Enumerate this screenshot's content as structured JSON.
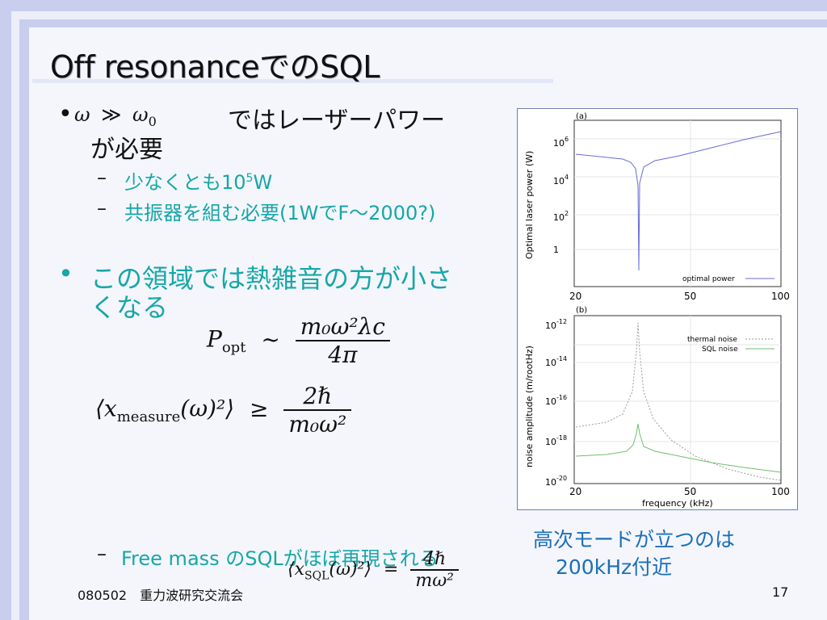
{
  "slide": {
    "title": "Off resonanceでのSQL",
    "bullet1": {
      "marker": "•",
      "math_lhs": "ω",
      "math_op": "≫",
      "math_rhs": "ω",
      "math_rhs_sub": "0",
      "text_line1": "ではレーザーパワー",
      "text_line2": "が必要",
      "subs": [
        {
          "dash": "–",
          "text": "少なくとも10",
          "sup": "5",
          "tail": "W"
        },
        {
          "dash": "–",
          "text": "共振器を組む必要(1WでF～2000?)"
        }
      ]
    },
    "bullet2": {
      "marker": "•",
      "text_line1": "この領域では熱雑音の方が小さ",
      "text_line2": "くなる"
    },
    "formula1": {
      "lhs": "P",
      "lhs_sub": "opt",
      "op": "~",
      "num": "m₀ω²λc",
      "den": "4π"
    },
    "formula2": {
      "lhs": "⟨x",
      "lhs_sub": "measure",
      "lhs_tail": "(ω)²⟩",
      "op": "≥",
      "num": "2ℏ",
      "den": "m₀ω²"
    },
    "formula3": {
      "lhs": "⟨x",
      "lhs_sub": "SQL",
      "lhs_tail": "(ω)²⟩",
      "op": "=",
      "num": "4ℏ",
      "den": "mω²"
    },
    "sub_last": {
      "dash": "–",
      "text": "Free mass のSQLがほぼ再現される"
    },
    "note": {
      "line1": "高次モードが立つのは",
      "line2": "200kHz付近"
    },
    "footer": {
      "left": "080502　重力波研究交流会",
      "right": "17"
    }
  },
  "figure": {
    "panel_a": {
      "label": "(a)",
      "ylabel": "Optimal laser power (W)",
      "yticks": [
        "10",
        "10",
        "10",
        "1"
      ],
      "ytick_sups": [
        "6",
        "4",
        "2",
        ""
      ],
      "xticks": [
        "20",
        "50",
        "100"
      ],
      "legend": "optimal power"
    },
    "panel_b": {
      "label": "(b)",
      "ylabel": "noise amplitude (m/rootHz)",
      "yticks": [
        "10",
        "10",
        "10",
        "10",
        "10"
      ],
      "ytick_sups": [
        "-12",
        "-14",
        "-16",
        "-18",
        "-20"
      ],
      "xticks": [
        "20",
        "50",
        "100"
      ],
      "xlabel": "frequency (kHz)",
      "legend1": "thermal noise",
      "legend2": "SQL noise"
    },
    "colors": {
      "optimal": "#6a6ad8",
      "thermal": "#9a9a9a",
      "sql": "#6fbf6f"
    }
  }
}
